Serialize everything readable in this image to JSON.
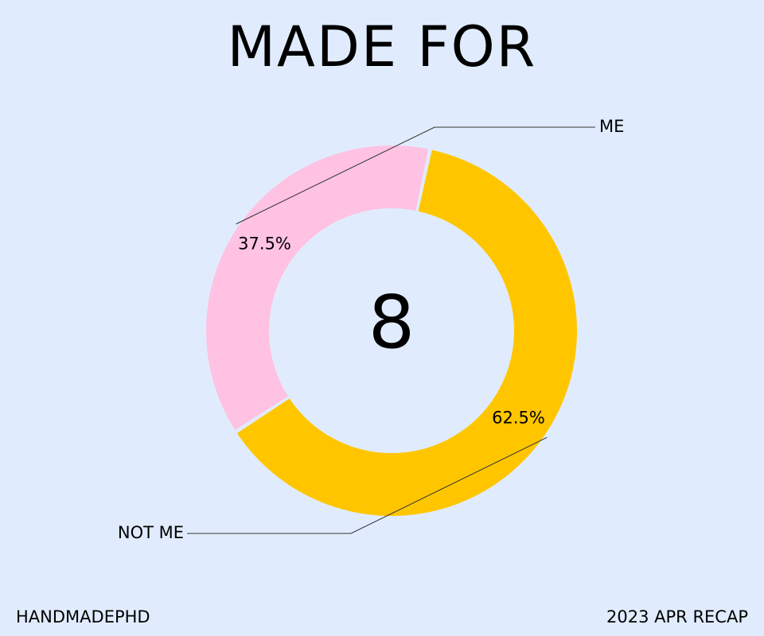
{
  "page": {
    "title": "MADE FOR",
    "background": "#e0ecfd"
  },
  "chart_data": {
    "type": "pie",
    "variant": "donut",
    "title": "MADE FOR",
    "center_value": "8",
    "slices": [
      {
        "name": "ME",
        "value": 37.5,
        "label": "37.5%",
        "color": "#ffc2e2"
      },
      {
        "name": "NOT ME",
        "value": 62.5,
        "label": "62.5%",
        "color": "#ffc600"
      }
    ],
    "legend": "leader-lines"
  },
  "footer": {
    "left": "HANDMADEPHD",
    "right": "2023 APR RECAP"
  }
}
